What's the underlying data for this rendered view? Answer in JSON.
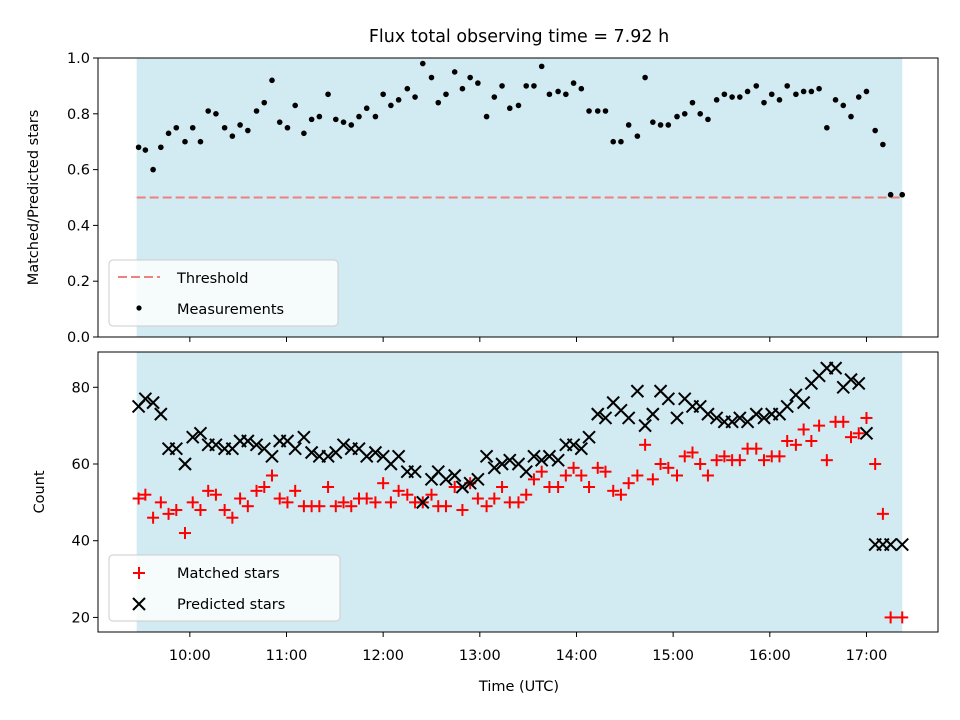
{
  "title": "Flux total observing time = 7.92 h",
  "colors": {
    "background_span": "#add8e6",
    "threshold": "#f08080",
    "measurements": "#000000",
    "matched": "#ff0000",
    "predicted": "#000000"
  },
  "chart_data": [
    {
      "type": "scatter",
      "ylabel": "Matched/Predicted stars",
      "ylim": [
        0,
        1.0
      ],
      "yticks": [
        "0.0",
        "0.2",
        "0.4",
        "0.6",
        "0.8",
        "1.0"
      ],
      "xlim": [
        9.05,
        17.74
      ],
      "legend_position": "lower-left",
      "shaded_span": [
        9.45,
        17.37
      ],
      "threshold": {
        "name": "Threshold",
        "value": 0.5,
        "x_range": [
          9.45,
          17.37
        ]
      },
      "series": [
        {
          "name": "Measurements",
          "x": [
            9.47,
            9.54,
            9.62,
            9.7,
            9.78,
            9.86,
            9.95,
            10.03,
            10.11,
            10.19,
            10.27,
            10.36,
            10.44,
            10.52,
            10.6,
            10.69,
            10.77,
            10.85,
            10.93,
            11.01,
            11.09,
            11.18,
            11.26,
            11.34,
            11.43,
            11.51,
            11.59,
            11.67,
            11.75,
            11.83,
            11.92,
            12.0,
            12.08,
            12.16,
            12.25,
            12.33,
            12.41,
            12.5,
            12.57,
            12.65,
            12.74,
            12.82,
            12.9,
            12.98,
            13.07,
            13.15,
            13.23,
            13.31,
            13.4,
            13.48,
            13.56,
            13.64,
            13.72,
            13.81,
            13.89,
            13.97,
            14.05,
            14.13,
            14.22,
            14.3,
            14.38,
            14.46,
            14.54,
            14.63,
            14.71,
            14.79,
            14.87,
            14.95,
            15.04,
            15.12,
            15.2,
            15.28,
            15.36,
            15.45,
            15.53,
            15.61,
            15.69,
            15.77,
            15.86,
            15.94,
            16.02,
            16.1,
            16.18,
            16.27,
            16.35,
            16.43,
            16.51,
            16.59,
            16.68,
            16.76,
            16.84,
            16.92,
            17.0,
            17.09,
            17.17,
            17.25,
            17.37
          ],
          "y": [
            0.68,
            0.67,
            0.6,
            0.68,
            0.73,
            0.75,
            0.7,
            0.75,
            0.7,
            0.81,
            0.8,
            0.75,
            0.72,
            0.76,
            0.74,
            0.81,
            0.84,
            0.92,
            0.77,
            0.75,
            0.83,
            0.73,
            0.78,
            0.79,
            0.87,
            0.78,
            0.77,
            0.76,
            0.79,
            0.82,
            0.79,
            0.87,
            0.83,
            0.85,
            0.89,
            0.86,
            0.98,
            0.93,
            0.84,
            0.87,
            0.95,
            0.89,
            0.93,
            0.91,
            0.79,
            0.86,
            0.9,
            0.82,
            0.83,
            0.9,
            0.9,
            0.97,
            0.87,
            0.88,
            0.87,
            0.91,
            0.89,
            0.81,
            0.81,
            0.81,
            0.7,
            0.7,
            0.76,
            0.72,
            0.93,
            0.77,
            0.76,
            0.76,
            0.79,
            0.8,
            0.84,
            0.8,
            0.78,
            0.85,
            0.87,
            0.86,
            0.86,
            0.88,
            0.9,
            0.84,
            0.87,
            0.85,
            0.9,
            0.87,
            0.88,
            0.88,
            0.89,
            0.75,
            0.85,
            0.83,
            0.79,
            0.86,
            0.88,
            0.74,
            0.69,
            0.51,
            0.51
          ]
        }
      ]
    },
    {
      "type": "scatter",
      "xlabel": "Time (UTC)",
      "ylabel": "Count",
      "ylim": [
        16.2,
        89.2
      ],
      "yticks": [
        "20",
        "40",
        "60",
        "80"
      ],
      "xlim": [
        9.05,
        17.74
      ],
      "xticks": [
        "10:00",
        "11:00",
        "12:00",
        "13:00",
        "14:00",
        "15:00",
        "16:00",
        "17:00"
      ],
      "legend_position": "lower-left",
      "shaded_span": [
        9.45,
        17.37
      ],
      "series": [
        {
          "name": "Matched stars",
          "marker": "+",
          "x": [
            9.47,
            9.54,
            9.62,
            9.7,
            9.78,
            9.86,
            9.95,
            10.03,
            10.11,
            10.19,
            10.27,
            10.36,
            10.44,
            10.52,
            10.6,
            10.69,
            10.77,
            10.85,
            10.93,
            11.01,
            11.09,
            11.18,
            11.26,
            11.34,
            11.43,
            11.51,
            11.59,
            11.67,
            11.75,
            11.83,
            11.92,
            12.0,
            12.08,
            12.16,
            12.25,
            12.33,
            12.41,
            12.5,
            12.57,
            12.65,
            12.74,
            12.82,
            12.9,
            12.98,
            13.07,
            13.15,
            13.23,
            13.31,
            13.4,
            13.48,
            13.56,
            13.64,
            13.72,
            13.81,
            13.89,
            13.97,
            14.05,
            14.13,
            14.22,
            14.3,
            14.38,
            14.46,
            14.54,
            14.63,
            14.71,
            14.79,
            14.87,
            14.95,
            15.04,
            15.12,
            15.2,
            15.28,
            15.36,
            15.45,
            15.53,
            15.61,
            15.69,
            15.77,
            15.86,
            15.94,
            16.02,
            16.1,
            16.18,
            16.27,
            16.35,
            16.43,
            16.51,
            16.59,
            16.68,
            16.76,
            16.84,
            16.92,
            17.0,
            17.09,
            17.17,
            17.25,
            17.37
          ],
          "y": [
            51,
            52,
            46,
            50,
            47,
            48,
            42,
            50,
            48,
            53,
            52,
            48,
            46,
            51,
            49,
            53,
            54,
            57,
            51,
            50,
            53,
            49,
            49,
            49,
            54,
            49,
            50,
            49,
            51,
            51,
            50,
            55,
            50,
            53,
            52,
            50,
            50,
            52,
            49,
            49,
            54,
            48,
            55,
            51,
            49,
            51,
            54,
            50,
            50,
            52,
            56,
            58,
            54,
            54,
            57,
            59,
            57,
            54,
            59,
            58,
            53,
            52,
            55,
            57,
            65,
            56,
            60,
            59,
            57,
            62,
            63,
            60,
            57,
            61,
            62,
            61,
            61,
            64,
            64,
            61,
            62,
            62,
            66,
            65,
            69,
            66,
            70,
            61,
            71,
            71,
            67,
            68,
            72,
            60,
            47,
            20,
            20
          ]
        },
        {
          "name": "Predicted stars",
          "marker": "x",
          "x": [
            9.47,
            9.54,
            9.62,
            9.7,
            9.78,
            9.86,
            9.95,
            10.03,
            10.11,
            10.19,
            10.27,
            10.36,
            10.44,
            10.52,
            10.6,
            10.69,
            10.77,
            10.85,
            10.93,
            11.01,
            11.09,
            11.18,
            11.26,
            11.34,
            11.43,
            11.51,
            11.59,
            11.67,
            11.75,
            11.83,
            11.92,
            12.0,
            12.08,
            12.16,
            12.25,
            12.33,
            12.41,
            12.5,
            12.57,
            12.65,
            12.74,
            12.82,
            12.9,
            12.98,
            13.07,
            13.15,
            13.23,
            13.31,
            13.4,
            13.48,
            13.56,
            13.64,
            13.72,
            13.81,
            13.89,
            13.97,
            14.05,
            14.13,
            14.22,
            14.3,
            14.38,
            14.46,
            14.54,
            14.63,
            14.71,
            14.79,
            14.87,
            14.95,
            15.04,
            15.12,
            15.2,
            15.28,
            15.36,
            15.45,
            15.53,
            15.61,
            15.69,
            15.77,
            15.86,
            15.94,
            16.02,
            16.1,
            16.18,
            16.27,
            16.35,
            16.43,
            16.51,
            16.59,
            16.68,
            16.76,
            16.84,
            16.92,
            17.0,
            17.09,
            17.17,
            17.25,
            17.37
          ],
          "y": [
            75,
            77,
            76,
            73,
            64,
            64,
            60,
            67,
            68,
            65,
            65,
            64,
            64,
            66,
            66,
            65,
            64,
            62,
            66,
            66,
            64,
            67,
            63,
            62,
            62,
            63,
            65,
            64,
            64,
            62,
            63,
            62,
            60,
            62,
            58,
            58,
            50,
            56,
            58,
            56,
            57,
            54,
            55,
            56,
            62,
            59,
            60,
            61,
            60,
            58,
            62,
            61,
            62,
            61,
            65,
            65,
            64,
            67,
            73,
            72,
            76,
            74,
            72,
            79,
            70,
            73,
            79,
            77,
            72,
            77,
            75,
            75,
            73,
            72,
            71,
            71,
            72,
            71,
            73,
            72,
            73,
            73,
            75,
            78,
            76,
            81,
            83,
            85,
            85,
            80,
            82,
            81,
            68,
            39,
            39,
            39,
            39
          ]
        }
      ]
    }
  ]
}
